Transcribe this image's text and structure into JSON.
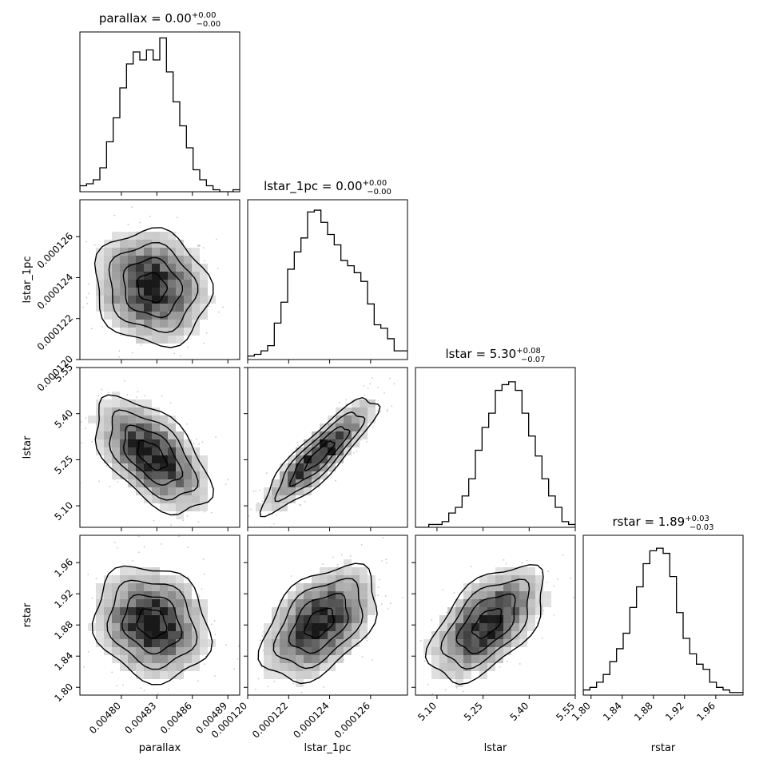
{
  "chart_data": {
    "type": "corner",
    "parameters": [
      {
        "name": "parallax",
        "axis_label": "parallax",
        "title": {
          "prefix": "parallax = ",
          "median": "0.00",
          "plus": "+0.00",
          "minus": "−0.00"
        },
        "range": [
          0.004765,
          0.0049
        ],
        "ticks": [
          0.0048,
          0.00483,
          0.00486,
          0.00489
        ],
        "tick_labels": [
          "0.00480",
          "0.00483",
          "0.00486",
          "0.00489"
        ],
        "hist_counts": [
          3,
          4,
          6,
          12,
          25,
          37,
          52,
          64,
          70,
          66,
          71,
          66,
          77,
          60,
          45,
          33,
          22,
          11,
          6,
          3,
          1,
          0,
          0,
          1
        ],
        "hist_ymax": 80
      },
      {
        "name": "lstar_1pc",
        "axis_label": "lstar_1pc",
        "title": {
          "prefix": "lstar_1pc = ",
          "median": "0.00",
          "plus": "+0.00",
          "minus": "−0.00"
        },
        "range": [
          0.00012,
          0.0001278
        ],
        "ticks": [
          0.00012,
          0.000122,
          0.000124,
          0.000126
        ],
        "tick_labels": [
          "0.000120",
          "0.000122",
          "0.000124",
          "0.000126"
        ],
        "hist_counts": [
          2,
          3,
          5,
          8,
          21,
          33,
          52,
          62,
          70,
          85,
          86,
          79,
          72,
          66,
          57,
          54,
          50,
          45,
          32,
          20,
          18,
          12,
          5,
          5
        ],
        "hist_ymax": 92
      },
      {
        "name": "lstar",
        "axis_label": "lstar",
        "title": {
          "prefix": "lstar = ",
          "median": "5.30",
          "plus": "+0.08",
          "minus": "−0.07"
        },
        "range": [
          5.03,
          5.55
        ],
        "ticks": [
          5.1,
          5.25,
          5.4,
          5.55
        ],
        "tick_labels": [
          "5.10",
          "5.25",
          "5.40",
          "5.55"
        ],
        "hist_counts": [
          0,
          0,
          1,
          1,
          2,
          5,
          7,
          11,
          17,
          27,
          35,
          40,
          48,
          50,
          51,
          48,
          40,
          32,
          25,
          17,
          11,
          7,
          2,
          1
        ],
        "hist_ymax": 56
      },
      {
        "name": "rstar",
        "axis_label": "rstar",
        "title": {
          "prefix": "rstar = ",
          "median": "1.89",
          "plus": "+0.03",
          "minus": "−0.03"
        },
        "range": [
          1.79,
          1.995
        ],
        "ticks": [
          1.8,
          1.84,
          1.88,
          1.92,
          1.96
        ],
        "tick_labels": [
          "1.80",
          "1.84",
          "1.88",
          "1.92",
          "1.96"
        ],
        "hist_counts": [
          2,
          3,
          5,
          8,
          13,
          18,
          24,
          34,
          42,
          51,
          56,
          57,
          55,
          46,
          32,
          22,
          16,
          12,
          10,
          5,
          3,
          2,
          1,
          1
        ],
        "hist_ymax": 62
      }
    ],
    "pair_correlations": {
      "1-0": -0.1,
      "2-0": -0.55,
      "2-1": 0.88,
      "3-0": -0.15,
      "3-1": 0.45,
      "3-2": 0.55
    },
    "contour_levels_sigma": [
      0.5,
      1,
      1.5,
      2
    ],
    "scatter_points": true
  }
}
